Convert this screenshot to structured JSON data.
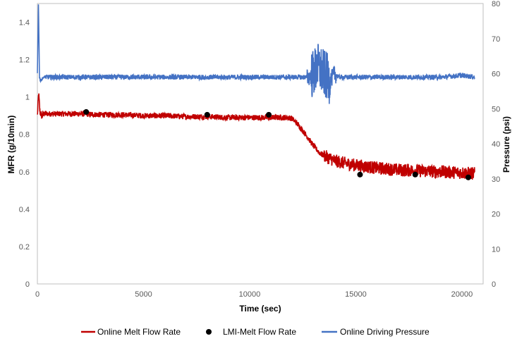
{
  "chart_data": {
    "type": "line",
    "title": "",
    "xlabel": "Time (sec)",
    "ylabel": "MFR (g/10min)",
    "y2label": "Pressure (psi)",
    "xlim": [
      0,
      21000
    ],
    "ylim": [
      0,
      1.5
    ],
    "y2lim": [
      0,
      80
    ],
    "xticks": [
      "0",
      "5000",
      "10000",
      "15000",
      "20000"
    ],
    "xtick_values": [
      0,
      5000,
      10000,
      15000,
      20000
    ],
    "yticks": [
      "0",
      "0.2",
      "0.4",
      "0.6",
      "0.8",
      "1",
      "1.2",
      "1.4"
    ],
    "ytick_values": [
      0,
      0.2,
      0.4,
      0.6,
      0.8,
      1.0,
      1.2,
      1.4
    ],
    "y2ticks": [
      "0",
      "10",
      "20",
      "30",
      "40",
      "50",
      "60",
      "70",
      "80"
    ],
    "y2tick_values": [
      0,
      10,
      20,
      30,
      40,
      50,
      60,
      70,
      80
    ],
    "legend_position": "bottom",
    "series": [
      {
        "name": "Online Melt Flow Rate",
        "axis": "left",
        "color": "#c00000",
        "style": "line",
        "x": [
          0,
          60,
          120,
          200,
          300,
          1000,
          2000,
          3000,
          4000,
          5000,
          6000,
          7000,
          8000,
          9000,
          10000,
          11000,
          11800,
          12000,
          12300,
          12700,
          13000,
          13300,
          13700,
          14000,
          14500,
          15000,
          16000,
          17000,
          18000,
          19000,
          20000,
          20600
        ],
        "y": [
          0.9,
          1.02,
          0.92,
          0.9,
          0.91,
          0.91,
          0.91,
          0.905,
          0.905,
          0.9,
          0.9,
          0.895,
          0.895,
          0.89,
          0.89,
          0.89,
          0.89,
          0.885,
          0.85,
          0.79,
          0.74,
          0.7,
          0.675,
          0.66,
          0.645,
          0.635,
          0.62,
          0.61,
          0.605,
          0.6,
          0.595,
          0.59
        ]
      },
      {
        "name": "LMI-Melt Flow Rate",
        "axis": "left",
        "color": "#000000",
        "style": "markers",
        "x": [
          2300,
          8000,
          10900,
          15200,
          17800,
          20300
        ],
        "y": [
          0.92,
          0.905,
          0.905,
          0.585,
          0.585,
          0.57
        ]
      },
      {
        "name": "Online Driving Pressure",
        "axis": "right",
        "color": "#4472c4",
        "style": "line",
        "x": [
          0,
          50,
          100,
          150,
          300,
          500,
          1000,
          3000,
          5000,
          8000,
          10000,
          12000,
          12800,
          13000,
          13200,
          13500,
          13800,
          14000,
          14200,
          15000,
          17000,
          19000,
          20000,
          20600
        ],
        "y": [
          60,
          80,
          59,
          58,
          59,
          59,
          59,
          59,
          59,
          59,
          59,
          59,
          59,
          60,
          62,
          60,
          58,
          60,
          59,
          59,
          59,
          59,
          59.5,
          59
        ]
      }
    ]
  }
}
